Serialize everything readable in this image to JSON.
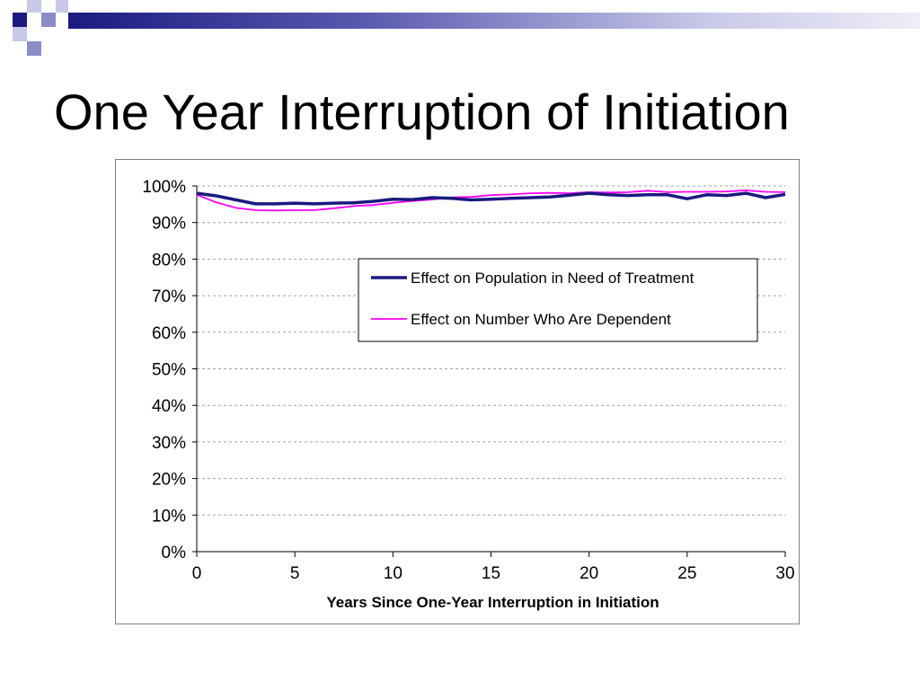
{
  "slide": {
    "title": "One Year Interruption of Initiation"
  },
  "colors": {
    "accent_dark": "#1a1a80",
    "accent_light": "#8c8cc8",
    "series_population": "#1a1a80",
    "series_dependent": "#ff00ff"
  },
  "chart_data": {
    "type": "line",
    "title": "",
    "xlabel": "Years Since One-Year Interruption in Initiation",
    "ylabel": "",
    "xlim": [
      0,
      30
    ],
    "ylim": [
      0,
      100
    ],
    "x_ticks": [
      0,
      5,
      10,
      15,
      20,
      25,
      30
    ],
    "y_ticks": [
      "0%",
      "10%",
      "20%",
      "30%",
      "40%",
      "50%",
      "60%",
      "70%",
      "80%",
      "90%",
      "100%"
    ],
    "grid": "horizontal dashed",
    "legend_position": "upper-right, inside plot",
    "x": [
      0,
      1,
      2,
      3,
      4,
      5,
      6,
      7,
      8,
      9,
      10,
      11,
      12,
      13,
      14,
      15,
      16,
      17,
      18,
      19,
      20,
      21,
      22,
      23,
      24,
      25,
      26,
      27,
      28,
      29,
      30
    ],
    "series": [
      {
        "name": "Effect on Population in Need of Treatment",
        "values": [
          98,
          97.3,
          96.2,
          95.1,
          95.1,
          95.3,
          95.1,
          95.3,
          95.4,
          95.8,
          96.4,
          96.3,
          96.8,
          96.6,
          96.2,
          96.4,
          96.6,
          96.8,
          97,
          97.5,
          98,
          97.6,
          97.4,
          97.6,
          97.6,
          96.5,
          97.6,
          97.4,
          98,
          96.8,
          97.7
        ]
      },
      {
        "name": "Effect on Number Who Are Dependent",
        "values": [
          97.6,
          95.5,
          94,
          93.4,
          93.3,
          93.4,
          93.4,
          93.9,
          94.5,
          94.8,
          95.4,
          95.9,
          96.3,
          96.9,
          97,
          97.5,
          97.7,
          98,
          98.1,
          98,
          98.3,
          98.2,
          98.3,
          98.7,
          98.3,
          98.4,
          98.4,
          98.5,
          98.8,
          98.4,
          98.3
        ]
      }
    ]
  }
}
